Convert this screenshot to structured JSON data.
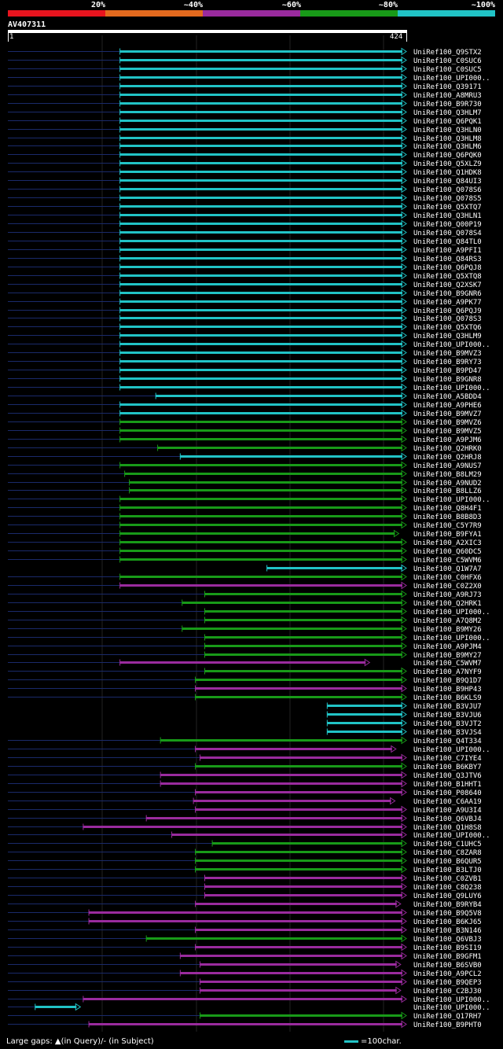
{
  "legend": {
    "labels": [
      "20%",
      "~40%",
      "~60%",
      "~80%",
      "~100%"
    ],
    "colors": [
      "#e8141e",
      "#e36a1e",
      "#9a2b9e",
      "#189a18",
      "#21c3c6"
    ]
  },
  "query": {
    "name": "AV407311",
    "start": "1",
    "end": "424",
    "length": 424
  },
  "footer": {
    "gaps_text": "Large gaps: ▲(in Query)/- (in Subject)",
    "scale_text": "=100char."
  },
  "chart_data": {
    "type": "alignment-overview",
    "title": "AV407311",
    "x_range": [
      1,
      424
    ],
    "color_key": {
      "cyan": "~100%",
      "green": "~80%",
      "purple": "~60%",
      "orange": "~40%",
      "red": "20%"
    },
    "hits": [
      {
        "name": "UniRef100_Q9STX2",
        "c": "cyan",
        "s": 120,
        "e": 424,
        "ex": 1
      },
      {
        "name": "UniRef100_C0SUC6",
        "c": "cyan",
        "s": 120,
        "e": 424,
        "ex": 1
      },
      {
        "name": "UniRef100_C0SUC5",
        "c": "cyan",
        "s": 120,
        "e": 424,
        "ex": 1
      },
      {
        "name": "UniRef100_UPI000..",
        "c": "cyan",
        "s": 120,
        "e": 424,
        "ex": 1
      },
      {
        "name": "UniRef100_Q39171",
        "c": "cyan",
        "s": 120,
        "e": 424,
        "ex": 1
      },
      {
        "name": "UniRef100_A8MRU3",
        "c": "cyan",
        "s": 120,
        "e": 424,
        "ex": 1
      },
      {
        "name": "UniRef100_B9R730",
        "c": "cyan",
        "s": 120,
        "e": 424,
        "ex": 1
      },
      {
        "name": "UniRef100_Q3HLM7",
        "c": "cyan",
        "s": 120,
        "e": 424,
        "ex": 1
      },
      {
        "name": "UniRef100_Q6PQK1",
        "c": "cyan",
        "s": 120,
        "e": 424,
        "ex": 1
      },
      {
        "name": "UniRef100_Q3HLN0",
        "c": "cyan",
        "s": 120,
        "e": 424,
        "ex": 1
      },
      {
        "name": "UniRef100_Q3HLM8",
        "c": "cyan",
        "s": 120,
        "e": 424,
        "ex": 1
      },
      {
        "name": "UniRef100_Q3HLM6",
        "c": "cyan",
        "s": 120,
        "e": 424,
        "ex": 1
      },
      {
        "name": "UniRef100_Q6PQK0",
        "c": "cyan",
        "s": 120,
        "e": 424,
        "ex": 1
      },
      {
        "name": "UniRef100_Q5XLZ9",
        "c": "cyan",
        "s": 120,
        "e": 424,
        "ex": 1
      },
      {
        "name": "UniRef100_Q1HDK8",
        "c": "cyan",
        "s": 120,
        "e": 424,
        "ex": 1
      },
      {
        "name": "UniRef100_Q84UI3",
        "c": "cyan",
        "s": 120,
        "e": 424,
        "ex": 1
      },
      {
        "name": "UniRef100_Q078S6",
        "c": "cyan",
        "s": 120,
        "e": 424,
        "ex": 1
      },
      {
        "name": "UniRef100_Q078S5",
        "c": "cyan",
        "s": 120,
        "e": 424,
        "ex": 1
      },
      {
        "name": "UniRef100_Q5XTQ7",
        "c": "cyan",
        "s": 120,
        "e": 424,
        "ex": 1
      },
      {
        "name": "UniRef100_Q3HLN1",
        "c": "cyan",
        "s": 120,
        "e": 424,
        "ex": 1
      },
      {
        "name": "UniRef100_Q00P19",
        "c": "cyan",
        "s": 120,
        "e": 424,
        "ex": 1
      },
      {
        "name": "UniRef100_Q078S4",
        "c": "cyan",
        "s": 120,
        "e": 424,
        "ex": 1
      },
      {
        "name": "UniRef100_Q84TL0",
        "c": "cyan",
        "s": 120,
        "e": 424,
        "ex": 1
      },
      {
        "name": "UniRef100_A9PFI1",
        "c": "cyan",
        "s": 120,
        "e": 424,
        "ex": 1
      },
      {
        "name": "UniRef100_Q84RS3",
        "c": "cyan",
        "s": 120,
        "e": 424,
        "ex": 1
      },
      {
        "name": "UniRef100_Q6PQJ8",
        "c": "cyan",
        "s": 120,
        "e": 424,
        "ex": 1
      },
      {
        "name": "UniRef100_Q5XTQ8",
        "c": "cyan",
        "s": 120,
        "e": 424,
        "ex": 1
      },
      {
        "name": "UniRef100_Q2XSK7",
        "c": "cyan",
        "s": 120,
        "e": 424,
        "ex": 1
      },
      {
        "name": "UniRef100_B9GNR6",
        "c": "cyan",
        "s": 120,
        "e": 424,
        "ex": 1
      },
      {
        "name": "UniRef100_A9PK77",
        "c": "cyan",
        "s": 120,
        "e": 424,
        "ex": 1
      },
      {
        "name": "UniRef100_Q6PQJ9",
        "c": "cyan",
        "s": 120,
        "e": 424,
        "ex": 1
      },
      {
        "name": "UniRef100_Q078S3",
        "c": "cyan",
        "s": 120,
        "e": 424,
        "ex": 1
      },
      {
        "name": "UniRef100_Q5XTQ6",
        "c": "cyan",
        "s": 120,
        "e": 424,
        "ex": 1
      },
      {
        "name": "UniRef100_Q3HLM9",
        "c": "cyan",
        "s": 120,
        "e": 424,
        "ex": 1
      },
      {
        "name": "UniRef100_UPI000..",
        "c": "cyan",
        "s": 120,
        "e": 424,
        "ex": 1
      },
      {
        "name": "UniRef100_B9MVZ3",
        "c": "cyan",
        "s": 120,
        "e": 424,
        "ex": 1
      },
      {
        "name": "UniRef100_B9RY73",
        "c": "cyan",
        "s": 120,
        "e": 424,
        "ex": 1
      },
      {
        "name": "UniRef100_B9PD47",
        "c": "cyan",
        "s": 120,
        "e": 424,
        "ex": 1
      },
      {
        "name": "UniRef100_B9GNR8",
        "c": "cyan",
        "s": 120,
        "e": 424,
        "ex": 1
      },
      {
        "name": "UniRef100_UPI000..",
        "c": "cyan",
        "s": 120,
        "e": 424,
        "ex": 1
      },
      {
        "name": "UniRef100_A5BDD4",
        "c": "cyan",
        "s": 158,
        "e": 424,
        "ex": 1
      },
      {
        "name": "UniRef100_A9PHE6",
        "c": "cyan",
        "s": 120,
        "e": 424,
        "ex": 1
      },
      {
        "name": "UniRef100_B9MVZ7",
        "c": "cyan",
        "s": 120,
        "e": 424,
        "ex": 1
      },
      {
        "name": "UniRef100_B9MVZ6",
        "c": "green",
        "s": 120,
        "e": 424,
        "ex": 1
      },
      {
        "name": "UniRef100_B9MVZ5",
        "c": "green",
        "s": 120,
        "e": 424,
        "ex": 1
      },
      {
        "name": "UniRef100_A9PJM6",
        "c": "green",
        "s": 120,
        "e": 424,
        "ex": 1
      },
      {
        "name": "UniRef100_Q2HRK0",
        "c": "green",
        "s": 160,
        "e": 424,
        "ex": 1
      },
      {
        "name": "UniRef100_Q2HRJ8",
        "c": "cyan",
        "s": 184,
        "e": 424,
        "ex": 1
      },
      {
        "name": "UniRef100_A9NUS7",
        "c": "green",
        "s": 120,
        "e": 424,
        "ex": 1
      },
      {
        "name": "UniRef100_B8LM29",
        "c": "green",
        "s": 125,
        "e": 424,
        "ex": 1
      },
      {
        "name": "UniRef100_A9NUD2",
        "c": "green",
        "s": 130,
        "e": 424,
        "ex": 1
      },
      {
        "name": "UniRef100_B8LLZ6",
        "c": "green",
        "s": 130,
        "e": 424,
        "ex": 1
      },
      {
        "name": "UniRef100_UPI000..",
        "c": "green",
        "s": 120,
        "e": 424,
        "ex": 1
      },
      {
        "name": "UniRef100_Q8H4F1",
        "c": "green",
        "s": 120,
        "e": 424,
        "ex": 1
      },
      {
        "name": "UniRef100_B8B8D3",
        "c": "green",
        "s": 120,
        "e": 424,
        "ex": 1
      },
      {
        "name": "UniRef100_C5Y7R9",
        "c": "green",
        "s": 120,
        "e": 424,
        "ex": 1
      },
      {
        "name": "UniRef100_B9FYA1",
        "c": "green",
        "s": 120,
        "e": 416,
        "ex": 1
      },
      {
        "name": "UniRef100_A2XIC3",
        "c": "green",
        "s": 120,
        "e": 424,
        "ex": 1
      },
      {
        "name": "UniRef100_Q60DC5",
        "c": "green",
        "s": 120,
        "e": 424,
        "ex": 1
      },
      {
        "name": "UniRef100_C5WVM6",
        "c": "green",
        "s": 120,
        "e": 424,
        "ex": 1
      },
      {
        "name": "UniRef100_Q1W7A7",
        "c": "cyan",
        "s": 276,
        "e": 424,
        "ex": 0
      },
      {
        "name": "UniRef100_C0HFX6",
        "c": "green",
        "s": 120,
        "e": 424,
        "ex": 1
      },
      {
        "name": "UniRef100_C0Z2X0",
        "c": "purple",
        "s": 120,
        "e": 424,
        "ex": 1
      },
      {
        "name": "UniRef100_A9RJ73",
        "c": "green",
        "s": 210,
        "e": 424,
        "ex": 1
      },
      {
        "name": "UniRef100_Q2HRK1",
        "c": "green",
        "s": 186,
        "e": 424,
        "ex": 1
      },
      {
        "name": "UniRef100_UPI000..",
        "c": "green",
        "s": 210,
        "e": 424,
        "ex": 1
      },
      {
        "name": "UniRef100_A7Q8M2",
        "c": "green",
        "s": 210,
        "e": 424,
        "ex": 1
      },
      {
        "name": "UniRef100_B9MY26",
        "c": "green",
        "s": 186,
        "e": 424,
        "ex": 1
      },
      {
        "name": "UniRef100_UPI000..",
        "c": "green",
        "s": 210,
        "e": 424,
        "ex": 1
      },
      {
        "name": "UniRef100_A9PJM4",
        "c": "green",
        "s": 210,
        "e": 424,
        "ex": 1
      },
      {
        "name": "UniRef100_B9MY27",
        "c": "green",
        "s": 210,
        "e": 424,
        "ex": 1
      },
      {
        "name": "UniRef100_C5WVM7",
        "c": "purple",
        "s": 120,
        "e": 385,
        "ex": 1
      },
      {
        "name": "UniRef100_A7NYF9",
        "c": "green",
        "s": 210,
        "e": 424,
        "ex": 1
      },
      {
        "name": "UniRef100_B9Q1D7",
        "c": "green",
        "s": 200,
        "e": 424,
        "ex": 1
      },
      {
        "name": "UniRef100_B9HP43",
        "c": "purple",
        "s": 200,
        "e": 424,
        "ex": 1
      },
      {
        "name": "UniRef100_B6KLS9",
        "c": "green",
        "s": 200,
        "e": 424,
        "ex": 1
      },
      {
        "name": "UniRef100_B3VJU7",
        "c": "cyan",
        "s": 340,
        "e": 424,
        "ex": 0
      },
      {
        "name": "UniRef100_B3VJU6",
        "c": "cyan",
        "s": 340,
        "e": 424,
        "ex": 0
      },
      {
        "name": "UniRef100_B3VJT2",
        "c": "cyan",
        "s": 340,
        "e": 424,
        "ex": 0
      },
      {
        "name": "UniRef100_B3VJS4",
        "c": "cyan",
        "s": 340,
        "e": 424,
        "ex": 0
      },
      {
        "name": "UniRef100_Q4T334",
        "c": "green",
        "s": 163,
        "e": 424,
        "ex": 1
      },
      {
        "name": "UniRef100_UPI000..",
        "c": "purple",
        "s": 200,
        "e": 413,
        "ex": 1
      },
      {
        "name": "UniRef100_C7IYE4",
        "c": "purple",
        "s": 205,
        "e": 424,
        "ex": 1
      },
      {
        "name": "UniRef100_B6KBY7",
        "c": "green",
        "s": 200,
        "e": 424,
        "ex": 1
      },
      {
        "name": "UniRef100_Q3JTV6",
        "c": "purple",
        "s": 163,
        "e": 424,
        "ex": 1
      },
      {
        "name": "UniRef100_B1HHT1",
        "c": "purple",
        "s": 163,
        "e": 424,
        "ex": 1
      },
      {
        "name": "UniRef100_P08640",
        "c": "purple",
        "s": 200,
        "e": 424,
        "ex": 1
      },
      {
        "name": "UniRef100_C6AA19",
        "c": "purple",
        "s": 198,
        "e": 412,
        "ex": 1
      },
      {
        "name": "UniRef100_A9U3I4",
        "c": "purple",
        "s": 200,
        "e": 424,
        "ex": 1
      },
      {
        "name": "UniRef100_Q6VBJ4",
        "c": "purple",
        "s": 148,
        "e": 424,
        "ex": 1
      },
      {
        "name": "UniRef100_Q1H8S8",
        "c": "purple",
        "s": 81,
        "e": 424,
        "ex": 1
      },
      {
        "name": "UniRef100_UPI000..",
        "c": "purple",
        "s": 175,
        "e": 424,
        "ex": 1
      },
      {
        "name": "UniRef100_C1UHC5",
        "c": "green",
        "s": 218,
        "e": 424,
        "ex": 1
      },
      {
        "name": "UniRef100_C8ZAR8",
        "c": "green",
        "s": 200,
        "e": 424,
        "ex": 1
      },
      {
        "name": "UniRef100_B6QUR5",
        "c": "green",
        "s": 200,
        "e": 424,
        "ex": 1
      },
      {
        "name": "UniRef100_B3LTJ0",
        "c": "green",
        "s": 200,
        "e": 424,
        "ex": 1
      },
      {
        "name": "UniRef100_C0ZVB1",
        "c": "purple",
        "s": 210,
        "e": 424,
        "ex": 1
      },
      {
        "name": "UniRef100_C8Q238",
        "c": "purple",
        "s": 210,
        "e": 424,
        "ex": 1
      },
      {
        "name": "UniRef100_Q9LUY6",
        "c": "purple",
        "s": 210,
        "e": 424,
        "ex": 1
      },
      {
        "name": "UniRef100_B9RYB4",
        "c": "purple",
        "s": 200,
        "e": 418,
        "ex": 1
      },
      {
        "name": "UniRef100_B9Q5V8",
        "c": "purple",
        "s": 87,
        "e": 424,
        "ex": 1
      },
      {
        "name": "UniRef100_B6KJ65",
        "c": "purple",
        "s": 87,
        "e": 424,
        "ex": 1
      },
      {
        "name": "UniRef100_B3N146",
        "c": "purple",
        "s": 200,
        "e": 424,
        "ex": 1
      },
      {
        "name": "UniRef100_Q6VBJ3",
        "c": "green",
        "s": 148,
        "e": 424,
        "ex": 1
      },
      {
        "name": "UniRef100_B9SI19",
        "c": "purple",
        "s": 200,
        "e": 424,
        "ex": 1
      },
      {
        "name": "UniRef100_B9GFM1",
        "c": "purple",
        "s": 184,
        "e": 424,
        "ex": 1
      },
      {
        "name": "UniRef100_B6SVB0",
        "c": "purple",
        "s": 205,
        "e": 418,
        "ex": 1
      },
      {
        "name": "UniRef100_A9PCL2",
        "c": "purple",
        "s": 184,
        "e": 424,
        "ex": 1
      },
      {
        "name": "UniRef100_B9QEP3",
        "c": "purple",
        "s": 205,
        "e": 424,
        "ex": 1
      },
      {
        "name": "UniRef100_C2BJ30",
        "c": "purple",
        "s": 205,
        "e": 418,
        "ex": 1
      },
      {
        "name": "UniRef100_UPI000..",
        "c": "purple",
        "s": 81,
        "e": 424,
        "ex": 1
      },
      {
        "name": "UniRef100_UPI000..",
        "c": "cyan",
        "s": 30,
        "e": 78,
        "ex": 1
      },
      {
        "name": "UniRef100_Q17RH7",
        "c": "green",
        "s": 205,
        "e": 424,
        "ex": 1
      },
      {
        "name": "UniRef100_B9PHT0",
        "c": "purple",
        "s": 87,
        "e": 424,
        "ex": 1
      }
    ]
  }
}
